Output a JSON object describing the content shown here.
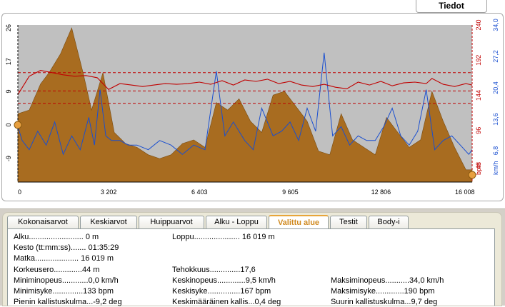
{
  "header": {
    "info_button": "Tiedot"
  },
  "chart_data": {
    "type": "area",
    "x_ticks": [
      "0",
      "3 202",
      "6 403",
      "9 605",
      "12 806",
      "16 008"
    ],
    "left_axis_ticks": [
      "26",
      "17",
      "9",
      "0",
      "-9"
    ],
    "hr_axis_ticks": [
      "240",
      "192",
      "144",
      "96",
      "48"
    ],
    "hr_axis_unit": "bpm",
    "speed_axis_ticks": [
      "34,0",
      "27,2",
      "20,4",
      "13,6",
      "6,8"
    ],
    "speed_axis_unit": "km/h",
    "xlim": [
      0,
      16019
    ],
    "altitude": {
      "x": [
        0,
        400,
        800,
        1100,
        1500,
        1900,
        2300,
        2600,
        3000,
        3400,
        3800,
        4200,
        4600,
        5000,
        5400,
        5800,
        6200,
        6600,
        7000,
        7400,
        7800,
        8200,
        8600,
        9000,
        9400,
        9800,
        10200,
        10600,
        11000,
        11400,
        11800,
        12200,
        12600,
        13000,
        13400,
        13800,
        14200,
        14600,
        15000,
        15400,
        15800,
        16019
      ],
      "y": [
        3,
        4,
        11,
        14,
        19,
        26,
        14,
        4,
        14,
        -2,
        -5,
        -6,
        -8,
        -9,
        -8,
        -5,
        -4,
        -6,
        6,
        4,
        7,
        1,
        -2,
        8,
        9,
        5,
        1,
        -7,
        -8,
        3,
        -4,
        -6,
        -8,
        2,
        -2,
        -6,
        -4,
        9,
        1,
        -6,
        -12,
        -12
      ]
    },
    "heart_rate_bpm": {
      "x": [
        0,
        400,
        800,
        1200,
        1600,
        2000,
        2400,
        2800,
        3200,
        3600,
        4000,
        4400,
        4800,
        5200,
        5600,
        6000,
        6400,
        6800,
        7200,
        7600,
        8000,
        8400,
        8800,
        9200,
        9600,
        10000,
        10400,
        10800,
        11200,
        11600,
        12000,
        12400,
        12800,
        13200,
        13600,
        14000,
        14400,
        14600,
        15000,
        15400,
        15800,
        16019
      ],
      "y": [
        145,
        170,
        178,
        175,
        172,
        170,
        171,
        168,
        152,
        160,
        158,
        156,
        158,
        160,
        159,
        160,
        162,
        159,
        164,
        158,
        165,
        163,
        166,
        160,
        163,
        158,
        156,
        159,
        155,
        153,
        162,
        158,
        163,
        157,
        161,
        162,
        160,
        167,
        159,
        156,
        160,
        158
      ]
    },
    "hr_reference_lines_bpm": [
      175,
      150,
      133
    ],
    "speed_kmh": {
      "x": [
        0,
        150,
        400,
        700,
        1000,
        1300,
        1600,
        1900,
        2200,
        2500,
        2700,
        2900,
        3100,
        3300,
        3600,
        3900,
        4200,
        4600,
        5000,
        5400,
        5800,
        6200,
        6600,
        7000,
        7300,
        7600,
        8000,
        8300,
        8600,
        9000,
        9300,
        9600,
        9900,
        10200,
        10500,
        10800,
        11100,
        11400,
        11700,
        12000,
        12300,
        12600,
        12900,
        13200,
        13500,
        13800,
        14100,
        14400,
        14700,
        15000,
        15300,
        15600,
        15900,
        16019
      ],
      "y": [
        12,
        9,
        7,
        11,
        8,
        13,
        6,
        10,
        7,
        14,
        8,
        20,
        10,
        9,
        9,
        8,
        8,
        7,
        9,
        8,
        6,
        8,
        7,
        24,
        10,
        13,
        9,
        7,
        16,
        10,
        11,
        13,
        9,
        16,
        11,
        28,
        10,
        12,
        8,
        10,
        9,
        9,
        12,
        16,
        10,
        8,
        11,
        20,
        7,
        9,
        10,
        8,
        6,
        7
      ]
    }
  },
  "tabs": [
    {
      "label": "Kokonaisarvot"
    },
    {
      "label": "Keskiarvot"
    },
    {
      "label": "Huippuarvot"
    },
    {
      "label": "Alku - Loppu"
    },
    {
      "label": "Valittu alue"
    },
    {
      "label": "Testit"
    },
    {
      "label": "Body-i"
    }
  ],
  "stats": {
    "alku": "Alku......................... 0 m",
    "loppu": "Loppu..................... 16 019 m",
    "kesto": "Kesto (tt:mm:ss)....... 01:35:29",
    "matka": "Matka.................... 16 019 m",
    "korkeusero": "Korkeusero.............44 m",
    "tehokkuus": "Tehokkuus..............17,6",
    "minimi_nopeus": "Miniminopeus............0,0 km/h",
    "keski_nopeus": "Keskinopeus.............9,5 km/h",
    "maksimi_nopeus": "Maksiminopeus...........34,0 km/h",
    "minimi_syke": "Minimisyke..............133 bpm",
    "keski_syke": "Keskisyke...............167 bpm",
    "maksimi_syke": "Maksimisyke.............190 bpm",
    "pienin_kallistus": "Pienin kallistuskulma...-9,2 deg",
    "keski_kallistus": "Keskimääräinen kallis...0,4 deg",
    "suurin_kallistus": "Suurin kallistuskulma...9,7 deg"
  }
}
